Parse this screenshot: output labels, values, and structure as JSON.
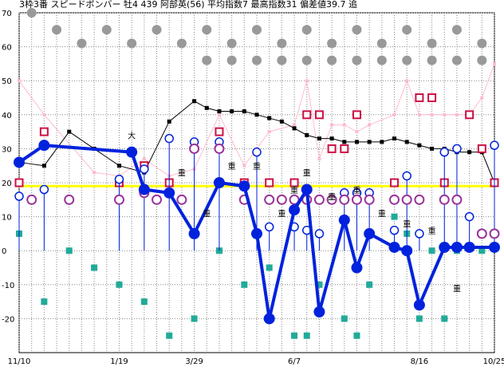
{
  "chart_data": {
    "type": "line",
    "title": "3枠3番 スピードボンバー 牡4 439 阿部英(56) 平均指数7 最高指数31 偏差値39.7 追",
    "ylim": [
      -30,
      70
    ],
    "yticks": [
      70,
      60,
      50,
      40,
      30,
      20,
      10,
      0,
      -10,
      -20
    ],
    "xticks": [
      {
        "label": "11/10",
        "i": 0
      },
      {
        "label": "1/19",
        "i": 4
      },
      {
        "label": "3/29",
        "i": 7
      },
      {
        "label": "6/7",
        "i": 11
      },
      {
        "label": "8/16",
        "i": 16
      },
      {
        "label": "10/25",
        "i": 19
      }
    ],
    "reference_line": 19,
    "colors": {
      "main": "#0022dd",
      "avg": "#000000",
      "magenta": "#993399",
      "square": "#cc1144",
      "teal": "#22aa99",
      "pink": "#ffbbcc",
      "gray": "#999999",
      "ref": "#ffff00"
    },
    "series": [
      {
        "key": "main",
        "x": [
          0,
          1,
          4.5,
          5,
          6,
          7,
          8,
          9,
          9.5,
          10,
          11,
          11.5,
          12,
          13,
          13.5,
          14,
          15,
          15.5,
          16,
          17,
          17.5,
          18,
          19
        ],
        "y": [
          26,
          31,
          29,
          18,
          17,
          5,
          20,
          19,
          5,
          -20,
          12,
          18,
          -18,
          9,
          -5,
          5,
          1,
          0,
          -16,
          1,
          1,
          1,
          1
        ]
      },
      {
        "key": "avg",
        "x": [
          0,
          1,
          2,
          3,
          4,
          5,
          6,
          7,
          7.5,
          8,
          8.5,
          9,
          9.5,
          10,
          10.5,
          11,
          11.5,
          12,
          12.5,
          13,
          13.5,
          14,
          14.5,
          15,
          15.5,
          16,
          16.5,
          17,
          17.5,
          18,
          18.5,
          19
        ],
        "y": [
          26,
          25,
          35,
          30,
          25,
          23,
          38,
          44,
          42,
          41,
          41,
          41,
          40,
          39,
          38,
          36,
          34,
          33,
          33,
          32,
          32,
          32,
          32,
          33,
          32,
          31,
          30,
          30,
          29,
          29,
          29,
          20
        ]
      },
      {
        "key": "gray_top",
        "x": [
          0.5,
          1.5,
          2.5,
          3.5,
          4.5,
          5.5,
          6.5,
          7.5,
          8.5,
          9.5,
          10.5,
          11.5,
          12.5,
          13.5,
          14.5,
          15.5,
          16.5,
          17.5,
          18.5
        ],
        "y": [
          70,
          65,
          61,
          65,
          61,
          65,
          61,
          65,
          61,
          65,
          61,
          65,
          61,
          65,
          61,
          65,
          61,
          65,
          61
        ]
      },
      {
        "key": "gray_mid",
        "x": [
          7.5,
          8.5,
          9.5,
          10.5,
          11.5,
          12.5,
          13.5,
          14.5,
          15.5,
          16.5,
          17.5,
          18.5
        ],
        "y": [
          56,
          56,
          56,
          56,
          56,
          56,
          56,
          56,
          56,
          56,
          56,
          56
        ]
      },
      {
        "key": "squares",
        "x": [
          0,
          1,
          4,
          5,
          6,
          8,
          9,
          10,
          11,
          11.5,
          12,
          12.5,
          13,
          13.5,
          15,
          16,
          16.5,
          17,
          18,
          18.5,
          19
        ],
        "y": [
          20,
          35,
          20,
          25,
          20,
          35,
          20,
          20,
          20,
          40,
          40,
          30,
          30,
          40,
          20,
          45,
          45,
          20,
          40,
          30,
          20
        ]
      },
      {
        "key": "magenta",
        "x": [
          0.5,
          2,
          4,
          5,
          5.5,
          6.5,
          7,
          8,
          9,
          10,
          10.5,
          11,
          11.5,
          12,
          12.5,
          13,
          13.5,
          14,
          15,
          15.5,
          16,
          17,
          17.5,
          18.5,
          19
        ],
        "y": [
          15,
          15,
          15,
          17,
          15,
          15,
          30,
          30,
          15,
          15,
          15,
          15,
          15,
          15,
          15,
          15,
          15,
          15,
          15,
          15,
          15,
          15,
          15,
          5,
          5
        ]
      },
      {
        "key": "hollow",
        "x": [
          0,
          1,
          4,
          5,
          6,
          7,
          8,
          9.5,
          10,
          11,
          11.5,
          12,
          13,
          13.5,
          14,
          15,
          15.5,
          16,
          17,
          17.5,
          18,
          19
        ],
        "y": [
          16,
          18,
          21,
          24,
          33,
          32,
          32,
          29,
          7,
          7,
          6,
          5,
          17,
          17,
          17,
          6,
          22,
          5,
          29,
          30,
          10,
          31
        ]
      },
      {
        "key": "teal",
        "x": [
          0,
          1,
          2,
          3,
          4,
          5,
          6,
          7,
          8,
          9,
          10,
          11,
          11.5,
          12,
          13,
          13.5,
          14,
          15,
          15.5,
          16,
          16.5,
          17,
          17.5,
          18.5
        ],
        "y": [
          5,
          -15,
          0,
          -5,
          -10,
          -15,
          -25,
          -20,
          0,
          -10,
          -5,
          -25,
          -25,
          -10,
          -20,
          -25,
          -10,
          10,
          5,
          -20,
          0,
          -20,
          0,
          0
        ]
      },
      {
        "key": "pink",
        "x": [
          0,
          1,
          3,
          4,
          5,
          6,
          7,
          8,
          9,
          10,
          11,
          11.5,
          12,
          12.5,
          13,
          13.5,
          14,
          15,
          15.5,
          16,
          16.5,
          17,
          17.5,
          18,
          18.5,
          19
        ],
        "y": [
          50,
          40,
          23,
          22,
          27,
          22,
          24,
          40,
          25,
          35,
          37,
          50,
          27,
          37,
          37,
          35,
          37,
          40,
          50,
          40,
          40,
          40,
          40,
          40,
          45,
          55
        ]
      }
    ],
    "markers": [
      {
        "label": "大",
        "x": 4.5,
        "y": 33
      },
      {
        "label": "重",
        "x": 6.5,
        "y": 22
      },
      {
        "label": "重",
        "x": 7.5,
        "y": 10
      },
      {
        "label": "重",
        "x": 8.5,
        "y": 24
      },
      {
        "label": "重",
        "x": 9.5,
        "y": 24
      },
      {
        "label": "重",
        "x": 10.5,
        "y": 10
      },
      {
        "label": "重",
        "x": 11,
        "y": 17
      },
      {
        "label": "重",
        "x": 11.5,
        "y": 22
      },
      {
        "label": "重",
        "x": 12.5,
        "y": 15
      },
      {
        "label": "重",
        "x": 13.5,
        "y": 17
      },
      {
        "label": "重",
        "x": 14.5,
        "y": 10
      },
      {
        "label": "重",
        "x": 15.5,
        "y": 7
      },
      {
        "label": "重",
        "x": 16.5,
        "y": 5
      },
      {
        "label": "重",
        "x": 17.5,
        "y": -12
      }
    ]
  }
}
